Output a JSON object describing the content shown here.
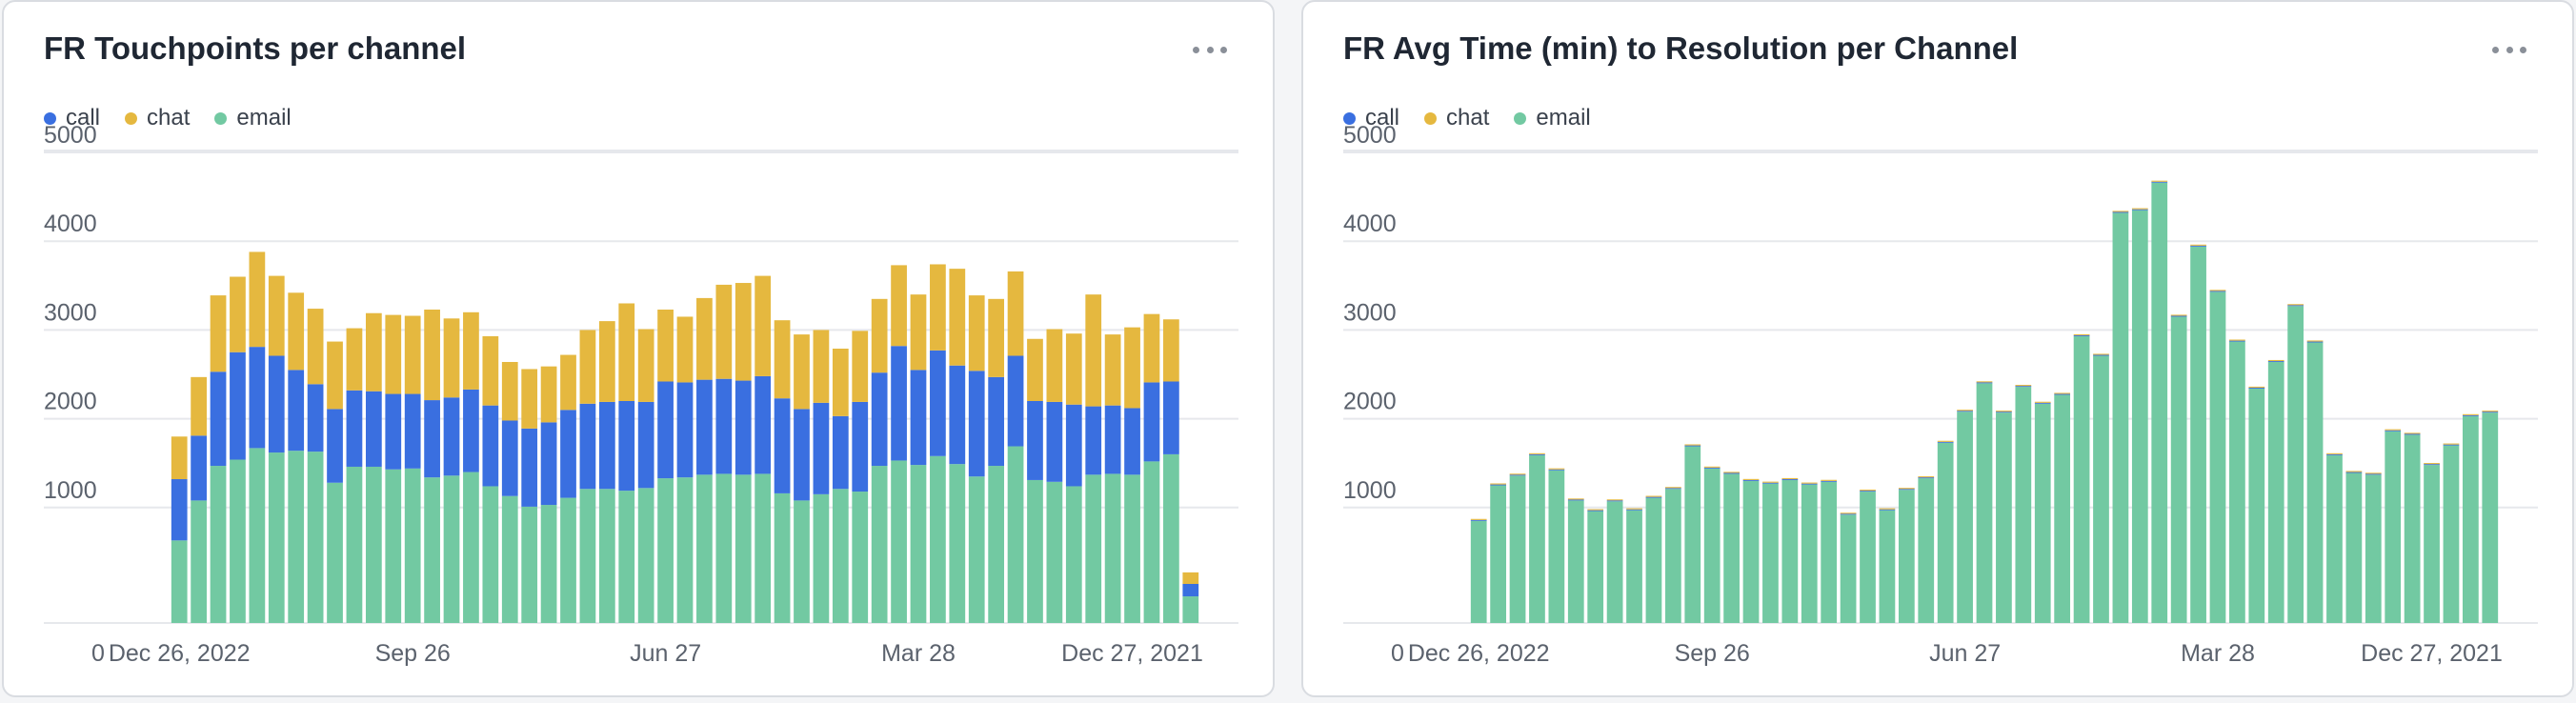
{
  "colors": {
    "call": "#3a6fe0",
    "chat": "#e5b83f",
    "email": "#72c9a2"
  },
  "chart_data": [
    {
      "type": "bar",
      "stacked": true,
      "title": "FR Touchpoints per channel",
      "legend": [
        "call",
        "chat",
        "email"
      ],
      "legend_position": "top-left",
      "grid": true,
      "ylim": [
        0,
        5000
      ],
      "yticks": [
        0,
        1000,
        2000,
        3000,
        4000,
        5000
      ],
      "xticks": [
        "Dec 26, 2022",
        "Sep 26",
        "Jun 27",
        "Mar 28",
        "Dec 27, 2021"
      ],
      "xtick_index": [
        0,
        12,
        25,
        38,
        49
      ],
      "series": [
        {
          "name": "email",
          "color": "#72c9a2",
          "values": [
            930,
            1380,
            1770,
            1840,
            1970,
            1920,
            1940,
            1930,
            1580,
            1760,
            1760,
            1730,
            1740,
            1640,
            1660,
            1700,
            1540,
            1430,
            1310,
            1330,
            1410,
            1510,
            1510,
            1490,
            1520,
            1630,
            1640,
            1670,
            1680,
            1670,
            1680,
            1460,
            1380,
            1450,
            1510,
            1480,
            1770,
            1830,
            1780,
            1880,
            1790,
            1650,
            1770,
            1990,
            1610,
            1590,
            1540,
            1670,
            1680,
            1670,
            1820,
            1900,
            300
          ]
        },
        {
          "name": "call",
          "color": "#3a6fe0",
          "values": [
            690,
            730,
            1060,
            1210,
            1140,
            1090,
            910,
            760,
            830,
            860,
            850,
            850,
            840,
            870,
            880,
            930,
            910,
            850,
            880,
            930,
            990,
            960,
            980,
            1010,
            970,
            1090,
            1070,
            1070,
            1070,
            1060,
            1100,
            1070,
            1030,
            1030,
            820,
            1010,
            1050,
            1290,
            1070,
            1190,
            1110,
            1190,
            1000,
            1020,
            890,
            900,
            920,
            770,
            770,
            750,
            890,
            820,
            140
          ]
        },
        {
          "name": "chat",
          "color": "#e5b83f",
          "values": [
            480,
            660,
            860,
            850,
            1070,
            900,
            870,
            850,
            760,
            700,
            880,
            890,
            880,
            1020,
            890,
            870,
            780,
            660,
            670,
            630,
            620,
            830,
            910,
            1100,
            820,
            810,
            740,
            920,
            1060,
            1100,
            1130,
            880,
            840,
            820,
            760,
            800,
            830,
            910,
            850,
            970,
            1090,
            850,
            880,
            950,
            700,
            820,
            800,
            1260,
            800,
            910,
            770,
            700,
            130
          ]
        }
      ]
    },
    {
      "type": "bar",
      "stacked": true,
      "title": "FR Avg Time (min) to Resolution per Channel",
      "legend": [
        "call",
        "chat",
        "email"
      ],
      "legend_position": "top-left",
      "grid": true,
      "ylim": [
        0,
        5000
      ],
      "yticks": [
        0,
        1000,
        2000,
        3000,
        4000,
        5000
      ],
      "xticks": [
        "Dec 26, 2022",
        "Sep 26",
        "Jun 27",
        "Mar 28",
        "Dec 27, 2021"
      ],
      "xtick_index": [
        0,
        12,
        25,
        38,
        49
      ],
      "series": [
        {
          "name": "email",
          "color": "#72c9a2",
          "values": [
            1150,
            1550,
            1660,
            1890,
            1720,
            1380,
            1260,
            1370,
            1270,
            1410,
            1510,
            1990,
            1740,
            1680,
            1600,
            1570,
            1610,
            1560,
            1590,
            1220,
            1480,
            1270,
            1500,
            1630,
            2030,
            2380,
            2700,
            2370,
            2660,
            2470,
            2570,
            3230,
            3010,
            4620,
            4650,
            4960,
            3450,
            4240,
            3730,
            3170,
            2640,
            2940,
            3570,
            3160,
            1890,
            1690,
            1670,
            2160,
            2120,
            1780,
            2000,
            2330,
            2370
          ]
        },
        {
          "name": "call",
          "color": "#3a6fe0",
          "values": [
            10,
            10,
            10,
            10,
            10,
            10,
            10,
            10,
            10,
            10,
            10,
            10,
            10,
            10,
            10,
            10,
            10,
            10,
            10,
            10,
            10,
            10,
            10,
            10,
            10,
            10,
            10,
            10,
            10,
            10,
            10,
            10,
            10,
            10,
            10,
            10,
            10,
            10,
            10,
            10,
            10,
            10,
            10,
            10,
            10,
            10,
            10,
            10,
            10,
            10,
            10,
            10,
            10
          ]
        },
        {
          "name": "chat",
          "color": "#e5b83f",
          "values": [
            12,
            12,
            12,
            12,
            12,
            12,
            12,
            12,
            12,
            12,
            12,
            12,
            12,
            12,
            12,
            12,
            12,
            12,
            12,
            12,
            12,
            12,
            12,
            12,
            12,
            12,
            12,
            12,
            12,
            12,
            12,
            12,
            12,
            12,
            12,
            12,
            12,
            12,
            12,
            12,
            12,
            12,
            12,
            12,
            12,
            12,
            12,
            12,
            12,
            12,
            12,
            12,
            12
          ]
        }
      ]
    }
  ],
  "cards": [
    {
      "title": "FR Touchpoints per channel",
      "legend": [
        "call",
        "chat",
        "email"
      ]
    },
    {
      "title": "FR Avg Time (min) to Resolution per Channel",
      "legend": [
        "call",
        "chat",
        "email"
      ]
    }
  ]
}
